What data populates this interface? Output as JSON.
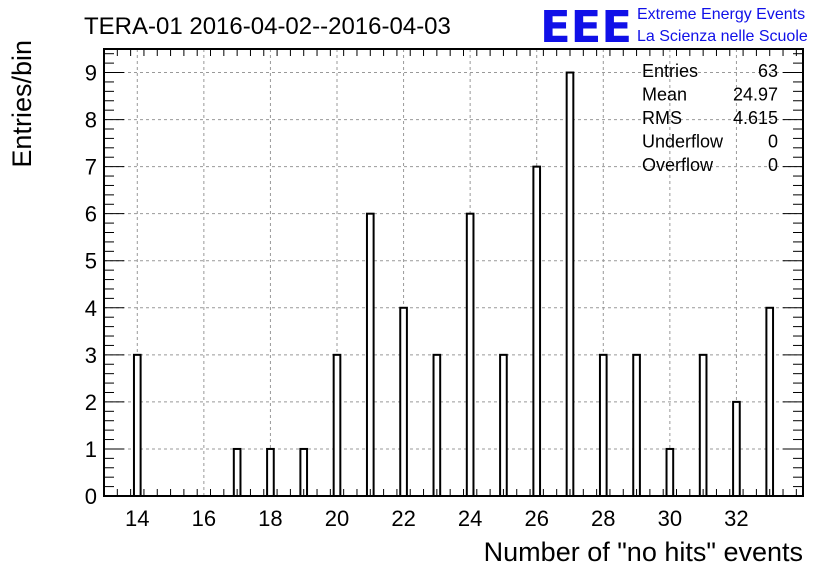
{
  "header": {
    "title": "TERA-01 2016-04-02--2016-04-03",
    "logo_letters": "EEE",
    "logo_line1": "Extreme Energy Events",
    "logo_line2": "La Scienza nelle Scuole",
    "logo_color": "#1010e8"
  },
  "stats": [
    {
      "label": "Entries",
      "value": "63"
    },
    {
      "label": "Mean",
      "value": "24.97"
    },
    {
      "label": "RMS",
      "value": "4.615"
    },
    {
      "label": "Underflow",
      "value": "0"
    },
    {
      "label": "Overflow",
      "value": "0"
    }
  ],
  "chart_data": {
    "type": "bar",
    "title": "TERA-01 2016-04-02--2016-04-03",
    "xlabel": "Number of \"no hits\" events",
    "ylabel": "Entries/bin",
    "xlim": [
      13,
      34
    ],
    "ylim": [
      0,
      9.5
    ],
    "grid": true,
    "x_ticks": [
      "14",
      "16",
      "18",
      "20",
      "22",
      "24",
      "26",
      "28",
      "30",
      "32"
    ],
    "y_ticks": [
      "0",
      "1",
      "2",
      "3",
      "4",
      "5",
      "6",
      "7",
      "8",
      "9"
    ],
    "bin_width": 0.2,
    "bins": [
      {
        "x": 14,
        "value": 3
      },
      {
        "x": 17,
        "value": 1
      },
      {
        "x": 18,
        "value": 1
      },
      {
        "x": 19,
        "value": 1
      },
      {
        "x": 20,
        "value": 3
      },
      {
        "x": 21,
        "value": 6
      },
      {
        "x": 22,
        "value": 4
      },
      {
        "x": 23,
        "value": 3
      },
      {
        "x": 24,
        "value": 6
      },
      {
        "x": 25,
        "value": 3
      },
      {
        "x": 26,
        "value": 7
      },
      {
        "x": 27,
        "value": 9
      },
      {
        "x": 28,
        "value": 3
      },
      {
        "x": 29,
        "value": 3
      },
      {
        "x": 30,
        "value": 1
      },
      {
        "x": 31,
        "value": 3
      },
      {
        "x": 32,
        "value": 2
      },
      {
        "x": 33,
        "value": 4
      }
    ]
  }
}
